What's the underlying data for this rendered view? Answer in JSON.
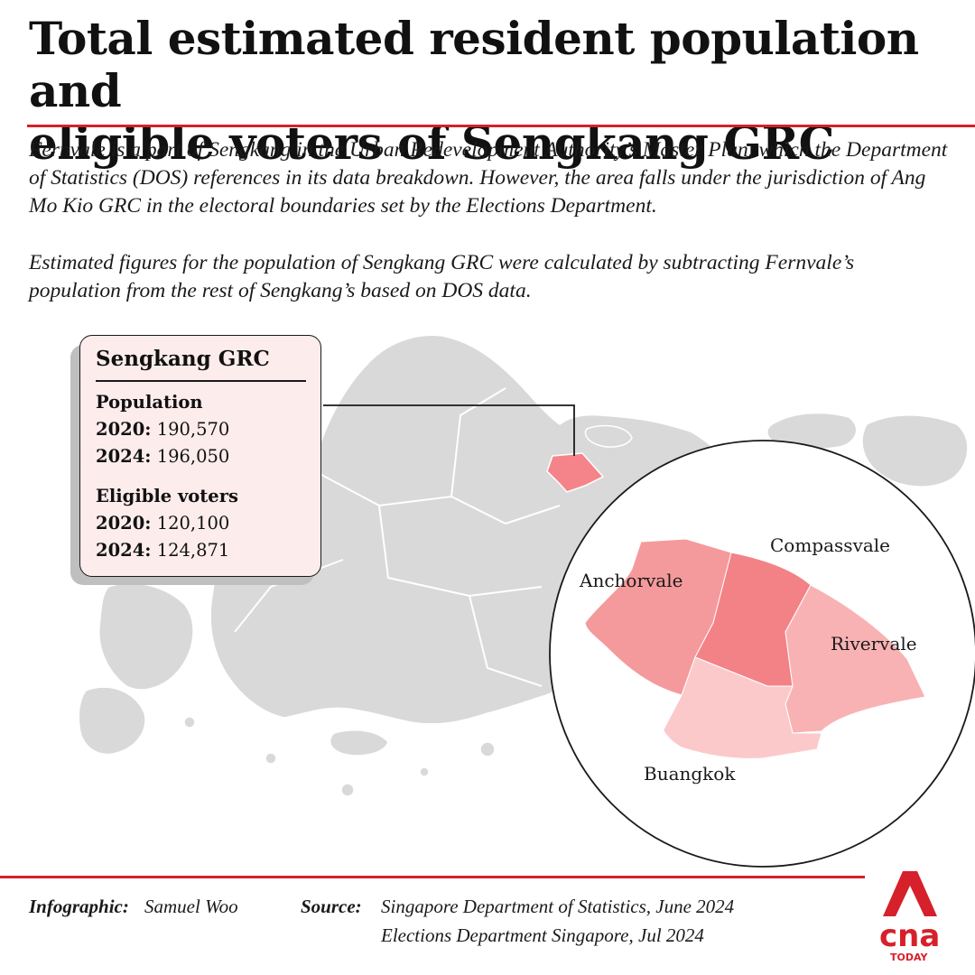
{
  "header": {
    "title_line1": "Total estimated resident population and",
    "title_line2": "eligible voters of Sengkang GRC",
    "intro_1": "Fernvale is a part of Sengkang in the Urban Redevelopment Authority’s Master Plan, which the Department of Statistics (DOS) references in its data breakdown. However, the area falls under the jurisdiction of Ang Mo Kio GRC in the electoral boundaries set by the Elections Department.",
    "intro_2": "Estimated figures for the population of Sengkang GRC were calculated by subtracting Fernvale’s population from the rest of Sengkang’s based on DOS data."
  },
  "card": {
    "title": "Sengkang GRC",
    "population": {
      "label": "Population",
      "rows": [
        {
          "year": "2020:",
          "value": "190,570"
        },
        {
          "year": "2024:",
          "value": "196,050"
        }
      ]
    },
    "voters": {
      "label": "Eligible voters",
      "rows": [
        {
          "year": "2020:",
          "value": "120,100"
        },
        {
          "year": "2024:",
          "value": "124,871"
        }
      ]
    }
  },
  "inset": {
    "areas": [
      {
        "name": "Anchorvale",
        "color": "#f59a9c"
      },
      {
        "name": "Compassvale",
        "color": "#f28286"
      },
      {
        "name": "Rivervale",
        "color": "#f9b2b4"
      },
      {
        "name": "Buangkok",
        "color": "#fcc9ca"
      }
    ]
  },
  "footer": {
    "infographic_label": "Infographic:",
    "infographic_name": "Samuel Woo",
    "source_label": "Source:",
    "source_1": "Singapore Department of Statistics, June 2024",
    "source_2": "Elections Department Singapore, Jul 2024"
  },
  "logo": {
    "wordmark": "cna",
    "sub": "TODAY"
  },
  "colors": {
    "accent": "#d6202a",
    "land": "#d9d9d9",
    "highlight": "#f5848a",
    "card_bg": "#fdecec"
  }
}
